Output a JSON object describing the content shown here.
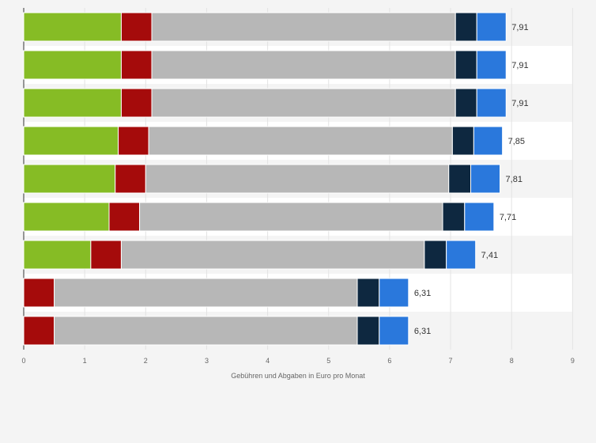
{
  "chart_data": {
    "type": "bar",
    "orientation": "horizontal",
    "stacked": true,
    "title": "",
    "xlabel": "Gebühren und Abgaben in Euro pro Monat",
    "ylabel": "",
    "xlim": [
      0,
      9
    ],
    "xticks": [
      "0",
      "1",
      "2",
      "3",
      "4",
      "5",
      "6",
      "7",
      "8",
      "9"
    ],
    "grid": true,
    "legend": "none",
    "colors": [
      "#86bc25",
      "#a50b0b",
      "#b7b7b7",
      "#0e2840",
      "#2a78dc"
    ],
    "series": [
      {
        "values": [
          1.6,
          1.6,
          1.6,
          1.55,
          1.5,
          1.4,
          1.1,
          0,
          0
        ]
      },
      {
        "values": [
          0.5,
          0.5,
          0.5,
          0.5,
          0.5,
          0.5,
          0.5,
          0.5,
          0.5
        ]
      },
      {
        "values": [
          4.98,
          4.98,
          4.98,
          4.98,
          4.97,
          4.97,
          4.97,
          4.97,
          4.97
        ]
      },
      {
        "values": [
          0.35,
          0.35,
          0.35,
          0.35,
          0.36,
          0.36,
          0.36,
          0.36,
          0.36
        ]
      },
      {
        "values": [
          0.48,
          0.48,
          0.48,
          0.47,
          0.48,
          0.48,
          0.48,
          0.48,
          0.48
        ]
      }
    ],
    "totals": [
      7.91,
      7.91,
      7.91,
      7.85,
      7.81,
      7.71,
      7.41,
      6.31,
      6.31
    ],
    "total_labels": [
      "7,91",
      "7,91",
      "7,91",
      "7,85",
      "7,81",
      "7,71",
      "7,41",
      "6,31",
      "6,31"
    ]
  }
}
